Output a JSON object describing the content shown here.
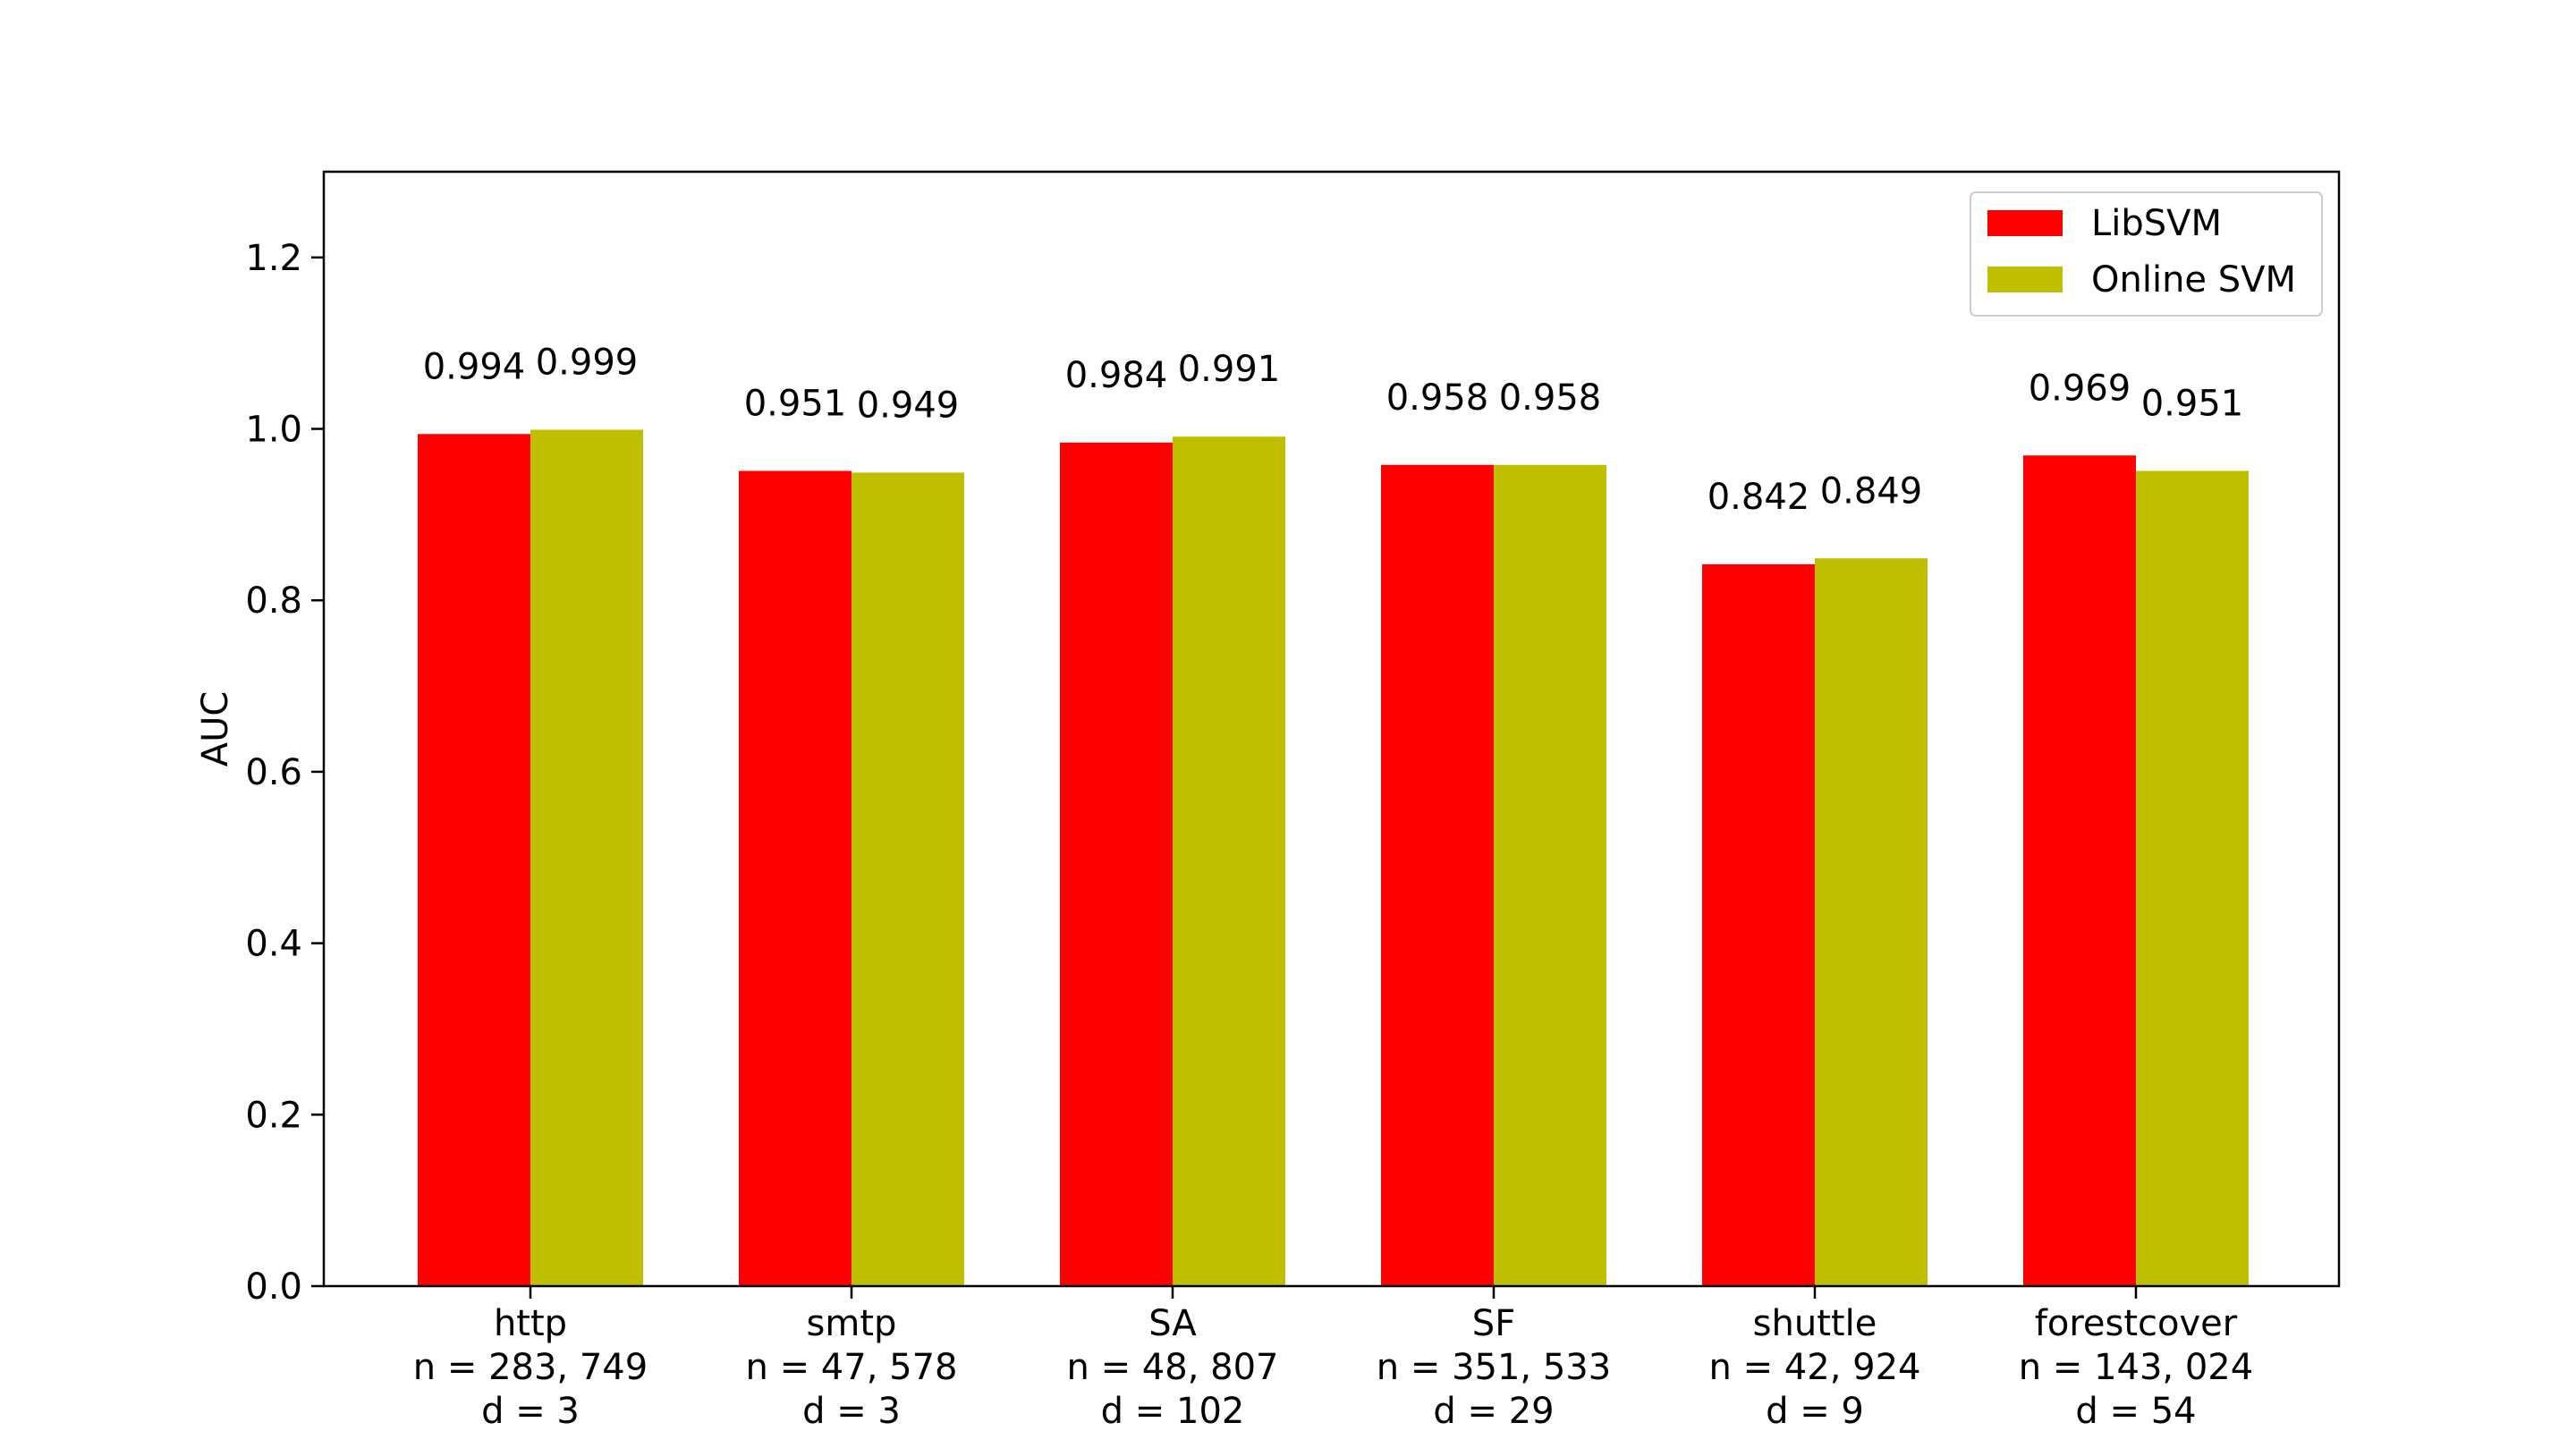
{
  "chart_data": {
    "type": "bar",
    "title": "",
    "xlabel": "",
    "ylabel": "AUC",
    "ylim": [
      0,
      1.3
    ],
    "yticks": [
      "0.0",
      "0.2",
      "0.4",
      "0.6",
      "0.8",
      "1.0",
      "1.2"
    ],
    "categories": [
      {
        "name": "http",
        "n": "n = 283, 749",
        "d": "d = 3"
      },
      {
        "name": "smtp",
        "n": "n = 47, 578",
        "d": "d = 3"
      },
      {
        "name": "SA",
        "n": "n = 48, 807",
        "d": "d = 102"
      },
      {
        "name": "SF",
        "n": "n = 351, 533",
        "d": "d = 29"
      },
      {
        "name": "shuttle",
        "n": "n = 42, 924",
        "d": "d = 9"
      },
      {
        "name": "forestcover",
        "n": "n = 143, 024",
        "d": "d = 54"
      }
    ],
    "series": [
      {
        "name": "LibSVM",
        "color": "#ff0000",
        "values": [
          0.994,
          0.951,
          0.984,
          0.958,
          0.842,
          0.969
        ],
        "labels": [
          "0.994",
          "0.951",
          "0.984",
          "0.958",
          "0.842",
          "0.969"
        ]
      },
      {
        "name": "Online SVM",
        "color": "#bfbf00",
        "values": [
          0.999,
          0.949,
          0.991,
          0.958,
          0.849,
          0.951
        ],
        "labels": [
          "0.999",
          "0.949",
          "0.991",
          "0.958",
          "0.849",
          "0.951"
        ]
      }
    ],
    "legend_position": "top-right",
    "grid": false
  }
}
